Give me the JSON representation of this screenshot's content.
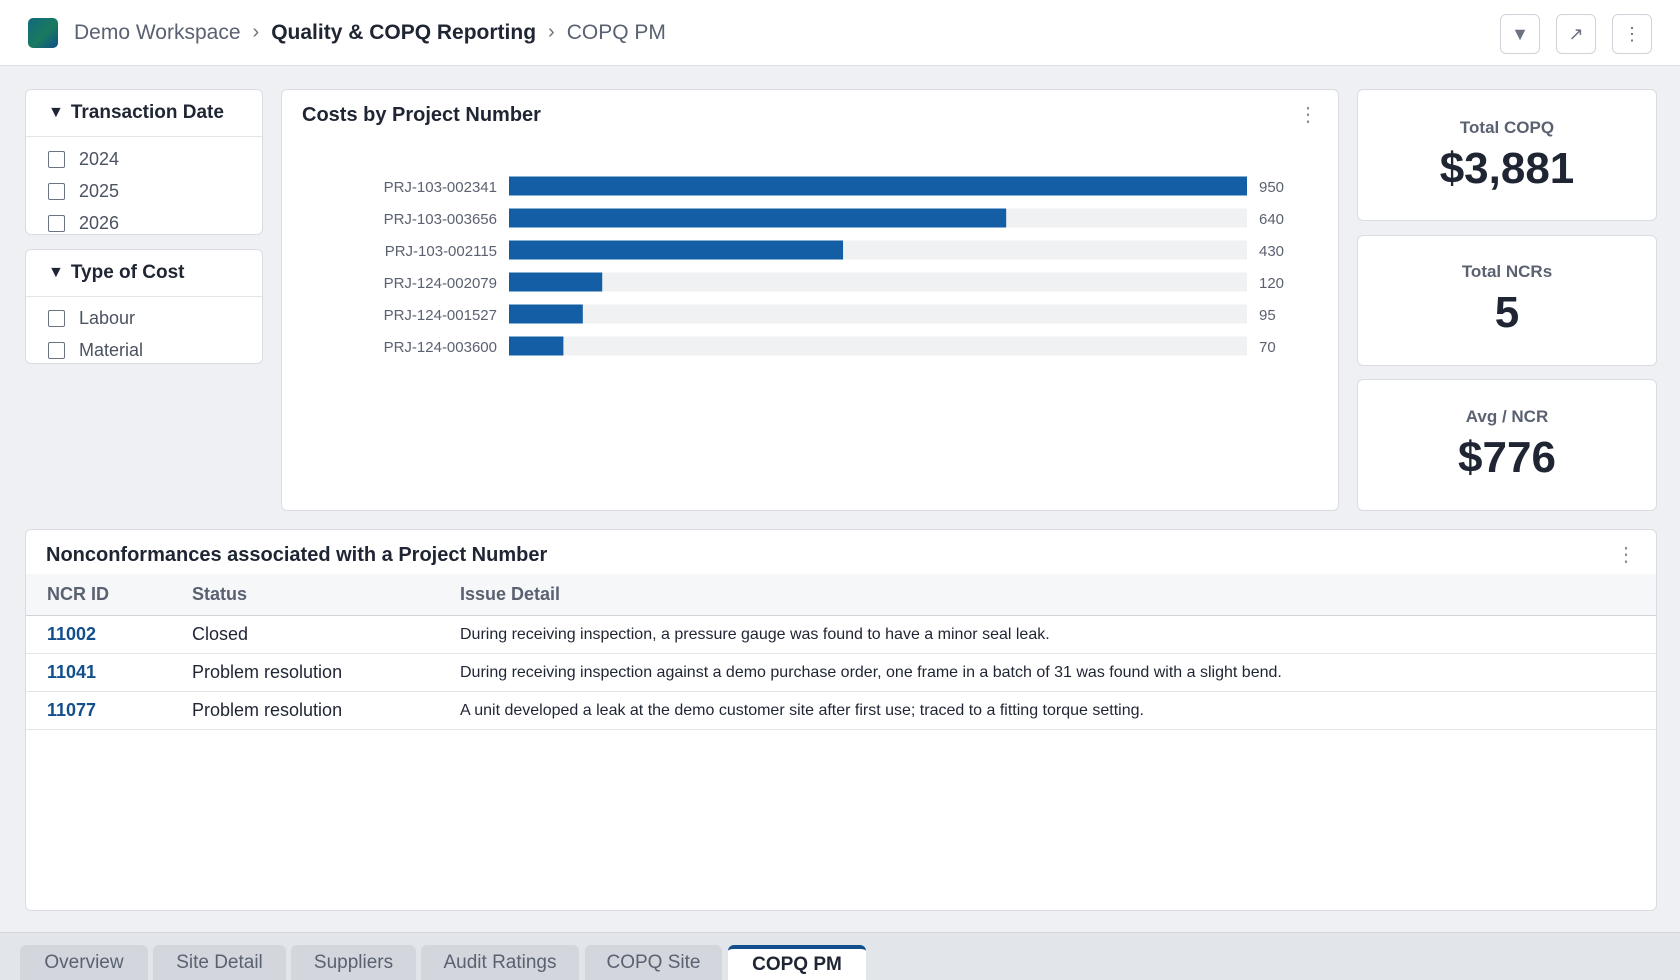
{
  "header": {
    "breadcrumb": [
      "Demo Workspace",
      "Quality & COPQ Reporting",
      "COPQ PM"
    ],
    "separator": "›",
    "actions": [
      {
        "name": "filter-button",
        "icon": "filter-icon",
        "glyph": "▼"
      },
      {
        "name": "expand-button",
        "icon": "expand-icon",
        "glyph": "↗"
      },
      {
        "name": "more-button",
        "icon": "more-icon",
        "glyph": "⋮"
      }
    ]
  },
  "filters": {
    "transaction_date": {
      "title": "Transaction Date",
      "caret": "▼",
      "options": [
        "2024",
        "2025",
        "2026"
      ]
    },
    "type_of_cost": {
      "title": "Type of Cost",
      "caret": "▼",
      "options": [
        "Labour",
        "Material"
      ]
    }
  },
  "chart_card": {
    "title": "Costs by Project Number",
    "menu_glyph": "⋮"
  },
  "chart_data": {
    "type": "bar",
    "orientation": "horizontal",
    "title": "Costs by Project Number",
    "categories": [
      "PRJ-103-002341",
      "PRJ-103-003656",
      "PRJ-103-002115",
      "PRJ-124-002079",
      "PRJ-124-001527",
      "PRJ-124-003600"
    ],
    "values": [
      950,
      640,
      430,
      120,
      95,
      70
    ],
    "xlim": [
      0,
      950
    ],
    "bar_color": "#135ea4",
    "track_color": "#f0f1f3",
    "grid": false,
    "legend": "none"
  },
  "kpis": [
    {
      "label": "Total COPQ",
      "value": "$3,881"
    },
    {
      "label": "Total NCRs",
      "value": "5"
    },
    {
      "label": "Avg / NCR",
      "value": "$776"
    }
  ],
  "table": {
    "title": "Nonconformances associated with a Project Number",
    "menu_glyph": "⋮",
    "columns": [
      "NCR ID",
      "Status",
      "Issue Detail"
    ],
    "rows": [
      {
        "id": "11002",
        "status": "Closed",
        "detail": "During receiving inspection, a pressure gauge was found to have a minor seal leak."
      },
      {
        "id": "11041",
        "status": "Problem resolution",
        "detail": "During receiving inspection against a demo purchase order, one frame in a batch of 31 was found with a slight bend."
      },
      {
        "id": "11077",
        "status": "Problem resolution",
        "detail": "A unit developed a leak at the demo customer site after first use; traced to a fitting torque setting."
      }
    ]
  },
  "tabs": [
    {
      "label": "Overview",
      "active": false
    },
    {
      "label": "Site Detail",
      "active": false
    },
    {
      "label": "Suppliers",
      "active": false
    },
    {
      "label": "Audit Ratings",
      "active": false
    },
    {
      "label": "COPQ Site",
      "active": false
    },
    {
      "label": "COPQ PM",
      "active": true
    }
  ],
  "colors": {
    "accent": "#124f8c",
    "bar": "#135ea4"
  }
}
